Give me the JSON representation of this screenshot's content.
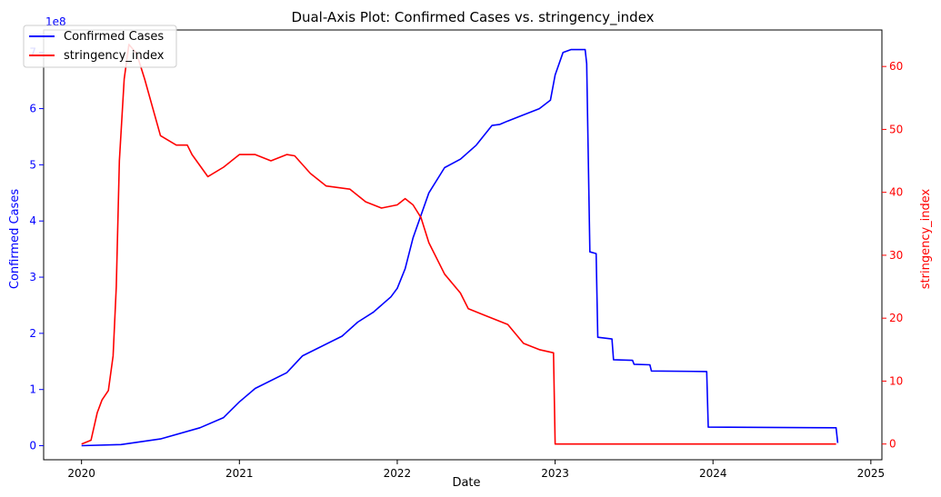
{
  "chart_data": {
    "type": "line",
    "title": "Dual-Axis Plot: Confirmed Cases vs. stringency_index",
    "xlabel": "Date",
    "x_ticks": [
      "2020",
      "2021",
      "2022",
      "2023",
      "2024",
      "2025"
    ],
    "x_range": [
      2019.76,
      2025.07
    ],
    "left_axis": {
      "label": "Confirmed Cases",
      "color": "#0000ff",
      "multiplier": "1e8",
      "ticks": [
        "0",
        "1",
        "2",
        "3",
        "4",
        "5",
        "6",
        "7"
      ],
      "range": [
        -0.25,
        7.4
      ]
    },
    "right_axis": {
      "label": "stringency_index",
      "color": "#ff0000",
      "ticks": [
        "0",
        "10",
        "20",
        "30",
        "40",
        "50",
        "60"
      ],
      "range": [
        -2.5,
        65.8
      ]
    },
    "legend": {
      "placement": "top-left",
      "entries": [
        "Confirmed Cases",
        "stringency_index"
      ]
    },
    "series": [
      {
        "name": "Confirmed Cases",
        "axis": "left",
        "color": "#0000ff",
        "points": [
          [
            2020.0,
            0.0
          ],
          [
            2020.25,
            0.02
          ],
          [
            2020.5,
            0.12
          ],
          [
            2020.75,
            0.32
          ],
          [
            2020.9,
            0.5
          ],
          [
            2021.0,
            0.78
          ],
          [
            2021.1,
            1.02
          ],
          [
            2021.3,
            1.3
          ],
          [
            2021.4,
            1.6
          ],
          [
            2021.5,
            1.74
          ],
          [
            2021.65,
            1.95
          ],
          [
            2021.75,
            2.2
          ],
          [
            2021.85,
            2.38
          ],
          [
            2021.96,
            2.65
          ],
          [
            2022.0,
            2.8
          ],
          [
            2022.05,
            3.15
          ],
          [
            2022.1,
            3.7
          ],
          [
            2022.2,
            4.5
          ],
          [
            2022.3,
            4.95
          ],
          [
            2022.4,
            5.1
          ],
          [
            2022.5,
            5.35
          ],
          [
            2022.6,
            5.7
          ],
          [
            2022.65,
            5.72
          ],
          [
            2022.7,
            5.78
          ],
          [
            2022.9,
            6.0
          ],
          [
            2022.97,
            6.15
          ],
          [
            2023.0,
            6.6
          ],
          [
            2023.05,
            7.0
          ],
          [
            2023.1,
            7.05
          ],
          [
            2023.19,
            7.05
          ],
          [
            2023.2,
            6.8
          ],
          [
            2023.22,
            3.45
          ],
          [
            2023.26,
            3.42
          ],
          [
            2023.27,
            1.93
          ],
          [
            2023.36,
            1.9
          ],
          [
            2023.37,
            1.53
          ],
          [
            2023.49,
            1.52
          ],
          [
            2023.5,
            1.45
          ],
          [
            2023.6,
            1.44
          ],
          [
            2023.61,
            1.33
          ],
          [
            2023.96,
            1.32
          ],
          [
            2023.97,
            0.33
          ],
          [
            2024.78,
            0.32
          ],
          [
            2024.79,
            0.05
          ]
        ]
      },
      {
        "name": "stringency_index",
        "axis": "right",
        "color": "#ff0000",
        "points": [
          [
            2020.0,
            0.0
          ],
          [
            2020.06,
            0.6
          ],
          [
            2020.1,
            5.0
          ],
          [
            2020.13,
            7.0
          ],
          [
            2020.17,
            8.5
          ],
          [
            2020.2,
            14.0
          ],
          [
            2020.22,
            25.0
          ],
          [
            2020.24,
            45.0
          ],
          [
            2020.27,
            58.0
          ],
          [
            2020.3,
            63.5
          ],
          [
            2020.35,
            62.0
          ],
          [
            2020.4,
            58.0
          ],
          [
            2020.45,
            53.5
          ],
          [
            2020.5,
            49.0
          ],
          [
            2020.6,
            47.5
          ],
          [
            2020.67,
            47.5
          ],
          [
            2020.7,
            46.0
          ],
          [
            2020.8,
            42.5
          ],
          [
            2020.9,
            44.0
          ],
          [
            2021.0,
            46.0
          ],
          [
            2021.1,
            46.0
          ],
          [
            2021.2,
            45.0
          ],
          [
            2021.3,
            46.0
          ],
          [
            2021.35,
            45.8
          ],
          [
            2021.45,
            43.0
          ],
          [
            2021.55,
            41.0
          ],
          [
            2021.7,
            40.5
          ],
          [
            2021.8,
            38.5
          ],
          [
            2021.9,
            37.5
          ],
          [
            2022.0,
            38.0
          ],
          [
            2022.05,
            39.0
          ],
          [
            2022.1,
            38.0
          ],
          [
            2022.15,
            36.0
          ],
          [
            2022.2,
            32.0
          ],
          [
            2022.3,
            27.0
          ],
          [
            2022.4,
            24.0
          ],
          [
            2022.45,
            21.5
          ],
          [
            2022.55,
            20.5
          ],
          [
            2022.7,
            19.0
          ],
          [
            2022.8,
            16.0
          ],
          [
            2022.9,
            15.0
          ],
          [
            2022.99,
            14.5
          ],
          [
            2023.0,
            0.0
          ],
          [
            2024.78,
            0.0
          ]
        ]
      }
    ]
  }
}
